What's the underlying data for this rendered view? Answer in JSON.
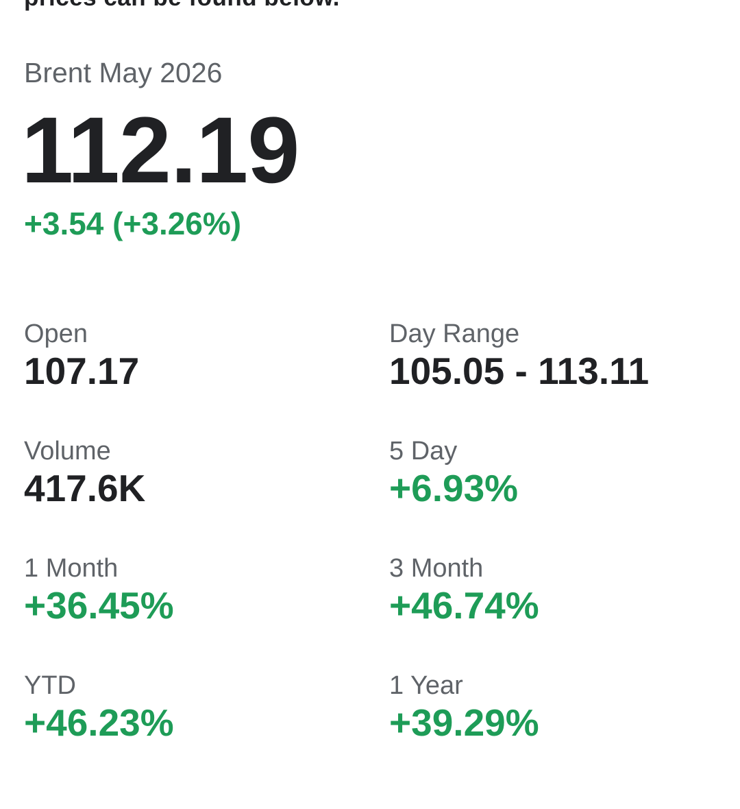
{
  "page": {
    "truncated_text": "prices can be found below."
  },
  "colors": {
    "positive": "#1e9c57",
    "text": "#202124",
    "label_gray": "#5f6368"
  },
  "quote": {
    "name": "Brent May 2026",
    "price": "112.19",
    "change": "+3.54 (+3.26%)",
    "stats": [
      {
        "label": "Open",
        "value": "107.17",
        "color": "black"
      },
      {
        "label": "Day Range",
        "value": "105.05 - 113.11",
        "color": "black"
      },
      {
        "label": "Volume",
        "value": "417.6K",
        "color": "black"
      },
      {
        "label": "5 Day",
        "value": "+6.93%",
        "color": "green"
      },
      {
        "label": "1 Month",
        "value": "+36.45%",
        "color": "green"
      },
      {
        "label": "3 Month",
        "value": "+46.74%",
        "color": "green"
      },
      {
        "label": "YTD",
        "value": "+46.23%",
        "color": "green"
      },
      {
        "label": "1 Year",
        "value": "+39.29%",
        "color": "green"
      }
    ]
  }
}
